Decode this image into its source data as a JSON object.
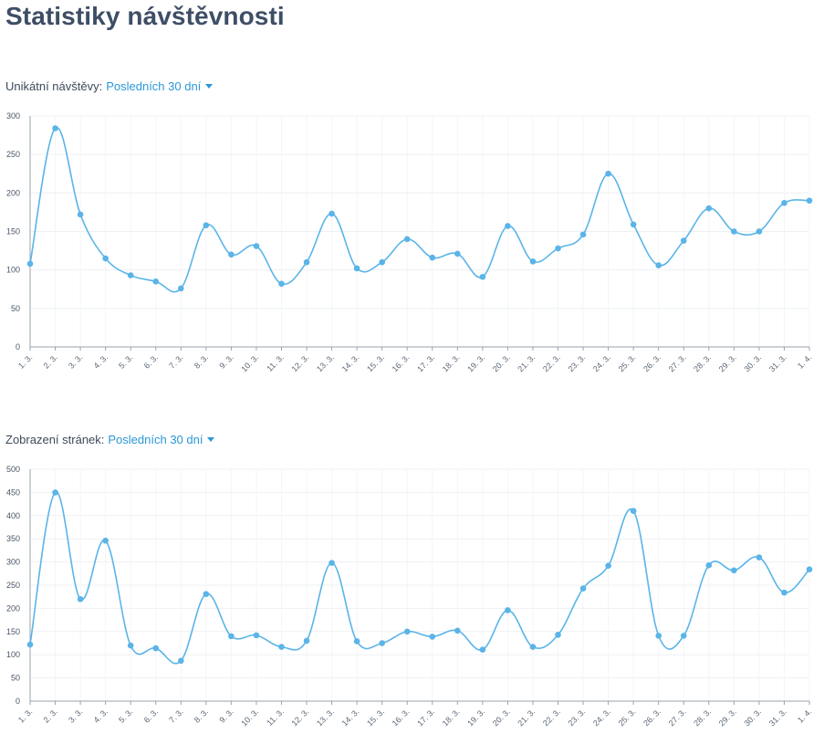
{
  "page": {
    "title": "Statistiky návštěvnosti"
  },
  "sections": [
    {
      "label": "Unikátní návštěvy:",
      "period": "Posledních 30 dní"
    },
    {
      "label": "Zobrazení stránek:",
      "period": "Posledních 30 dní"
    }
  ],
  "colors": {
    "line": "#5ab4e8",
    "title": "#3e4e66",
    "link": "#2c97d8"
  },
  "chart_data": [
    {
      "type": "line",
      "categories": [
        "1. 3.",
        "2. 3.",
        "3. 3.",
        "4. 3.",
        "5. 3.",
        "6. 3.",
        "7. 3.",
        "8. 3.",
        "9. 3.",
        "10. 3.",
        "11. 3.",
        "12. 3.",
        "13. 3.",
        "14. 3.",
        "15. 3.",
        "16. 3.",
        "17. 3.",
        "18. 3.",
        "19. 3.",
        "20. 3.",
        "21. 3.",
        "22. 3.",
        "23. 3.",
        "24. 3.",
        "25. 3.",
        "26. 3.",
        "27. 3.",
        "28. 3.",
        "29. 3.",
        "30. 3.",
        "31. 3.",
        "1. 4."
      ],
      "series": [
        {
          "values": [
            108,
            284,
            172,
            115,
            93,
            85,
            76,
            158,
            120,
            131,
            82,
            110,
            173,
            102,
            110,
            140,
            116,
            121,
            91,
            157,
            111,
            128,
            146,
            225,
            159,
            106,
            138,
            180,
            150,
            150,
            187,
            190
          ]
        }
      ],
      "ylim": [
        0,
        300
      ],
      "yticks": [
        0,
        50,
        100,
        150,
        200,
        250,
        300
      ],
      "grid": true
    },
    {
      "type": "line",
      "categories": [
        "1. 3.",
        "2. 3.",
        "3. 3.",
        "4. 3.",
        "5. 3.",
        "6. 3.",
        "7. 3.",
        "8. 3.",
        "9. 3.",
        "10. 3.",
        "11. 3.",
        "12. 3.",
        "13. 3.",
        "14. 3.",
        "15. 3.",
        "16. 3.",
        "17. 3.",
        "18. 3.",
        "19. 3.",
        "20. 3.",
        "21. 3.",
        "22. 3.",
        "23. 3.",
        "24. 3.",
        "25. 3.",
        "26. 3.",
        "27. 3.",
        "28. 3.",
        "29. 3.",
        "30. 3.",
        "31. 3.",
        "1. 4."
      ],
      "series": [
        {
          "values": [
            122,
            450,
            220,
            346,
            120,
            114,
            87,
            231,
            140,
            142,
            117,
            130,
            298,
            129,
            125,
            150,
            139,
            152,
            111,
            196,
            117,
            143,
            243,
            292,
            410,
            141,
            141,
            293,
            282,
            310,
            234,
            284
          ]
        }
      ],
      "ylim": [
        0,
        500
      ],
      "yticks": [
        0,
        50,
        100,
        150,
        200,
        250,
        300,
        350,
        400,
        450,
        500
      ],
      "grid": true
    }
  ]
}
